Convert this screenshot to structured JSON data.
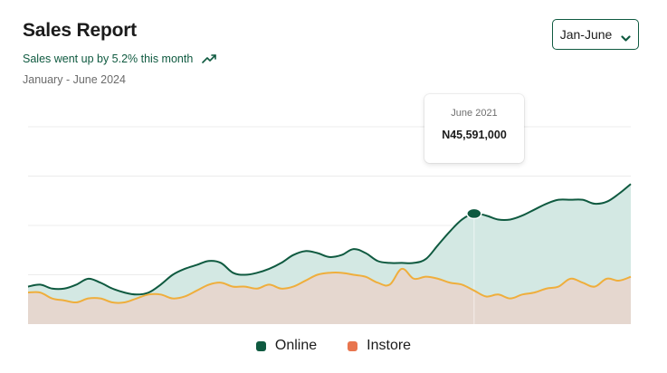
{
  "header": {
    "title": "Sales Report",
    "trend_text": "Sales went up by 5.2% this month",
    "trend_icon": "trending-up-icon",
    "period": "January - June 2024"
  },
  "range_select": {
    "value": "Jan-June",
    "icon": "chevron-down-icon"
  },
  "tooltip": {
    "date": "June 2021",
    "value": "N45,591,000"
  },
  "colors": {
    "online": "#0f5a40",
    "online_fill": "#d3e8e3",
    "instore": "#e8754e",
    "instore_line": "#efae3c",
    "instore_fill": "#e5d7cf"
  },
  "chart_data": {
    "type": "area",
    "x": [
      0,
      2,
      4,
      6,
      8,
      10,
      12,
      14,
      16,
      18,
      20,
      22,
      24,
      26,
      28,
      30,
      32,
      34,
      36,
      38,
      40,
      42,
      44,
      46,
      48,
      50,
      52,
      54,
      56,
      58,
      60,
      62,
      64,
      66,
      68,
      70,
      72,
      74,
      76,
      78,
      80,
      82,
      84,
      86,
      88,
      90,
      92,
      94,
      96,
      98,
      100
    ],
    "series": [
      {
        "name": "Online",
        "values": [
          19,
          20,
          18,
          18,
          20,
          23,
          21,
          18,
          16,
          15,
          16,
          20,
          25,
          28,
          30,
          32,
          31,
          26,
          25,
          26,
          28,
          31,
          35,
          37,
          36,
          34,
          35,
          38,
          36,
          32,
          31,
          31,
          31,
          33,
          40,
          47,
          53,
          56,
          55,
          53,
          53,
          55,
          58,
          61,
          63,
          63,
          63,
          61,
          62,
          66,
          71
        ]
      },
      {
        "name": "Instore",
        "values": [
          16,
          16,
          13,
          12,
          11,
          13,
          13,
          11,
          11,
          13,
          15,
          15,
          13,
          14,
          17,
          20,
          21,
          19,
          19,
          18,
          20,
          18,
          19,
          22,
          25,
          26,
          26,
          25,
          24,
          21,
          20,
          28,
          23,
          24,
          23,
          21,
          20,
          17,
          14,
          15,
          13,
          15,
          16,
          18,
          19,
          23,
          21,
          19,
          23,
          22,
          24
        ]
      }
    ],
    "ylim": [
      0,
      100
    ],
    "grid": true,
    "legend": "bottom-center",
    "highlight": {
      "series": "Online",
      "x": 74
    }
  },
  "legend": {
    "online_label": "Online",
    "instore_label": "Instore"
  }
}
